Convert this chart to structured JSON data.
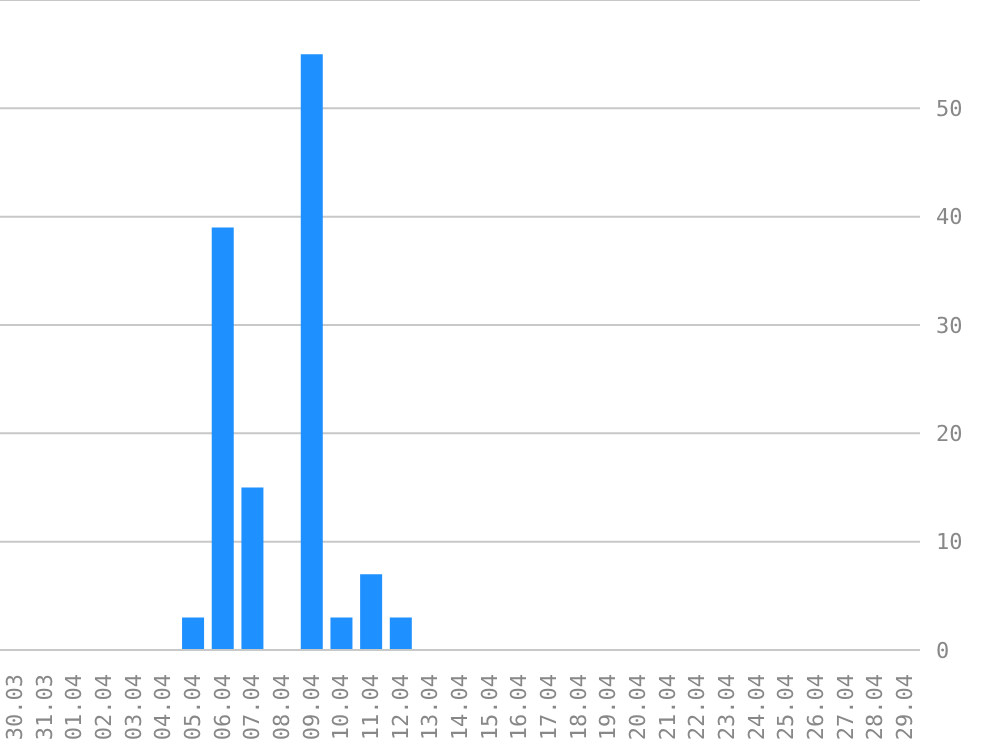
{
  "chart_data": {
    "type": "bar",
    "categories": [
      "30.03",
      "31.03",
      "01.04",
      "02.04",
      "03.04",
      "04.04",
      "05.04",
      "06.04",
      "07.04",
      "08.04",
      "09.04",
      "10.04",
      "11.04",
      "12.04",
      "13.04",
      "14.04",
      "15.04",
      "16.04",
      "17.04",
      "18.04",
      "19.04",
      "20.04",
      "21.04",
      "22.04",
      "23.04",
      "24.04",
      "25.04",
      "26.04",
      "27.04",
      "28.04",
      "29.04"
    ],
    "values": [
      0,
      0,
      0,
      0,
      0,
      0,
      3,
      39,
      15,
      0,
      55,
      3,
      7,
      3,
      0,
      0,
      0,
      0,
      0,
      0,
      0,
      0,
      0,
      0,
      0,
      0,
      0,
      0,
      0,
      0,
      0
    ],
    "color": "#1e90ff",
    "ylim": [
      0,
      60
    ],
    "yticks": [
      0,
      10,
      20,
      30,
      40,
      50
    ],
    "grid": "y"
  }
}
